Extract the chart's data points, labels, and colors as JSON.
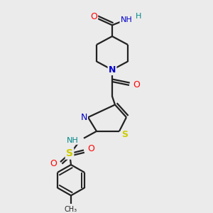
{
  "background_color": "#ebebeb",
  "figsize": [
    3.0,
    3.0
  ],
  "dpi": 100,
  "atom_colors": {
    "O": "#ff0000",
    "N": "#0000cc",
    "S": "#cccc00",
    "C": "#000000",
    "H": "#008888",
    "NH_teal": "#008888"
  },
  "bond_lw": 1.6,
  "bond_color": "#222222"
}
